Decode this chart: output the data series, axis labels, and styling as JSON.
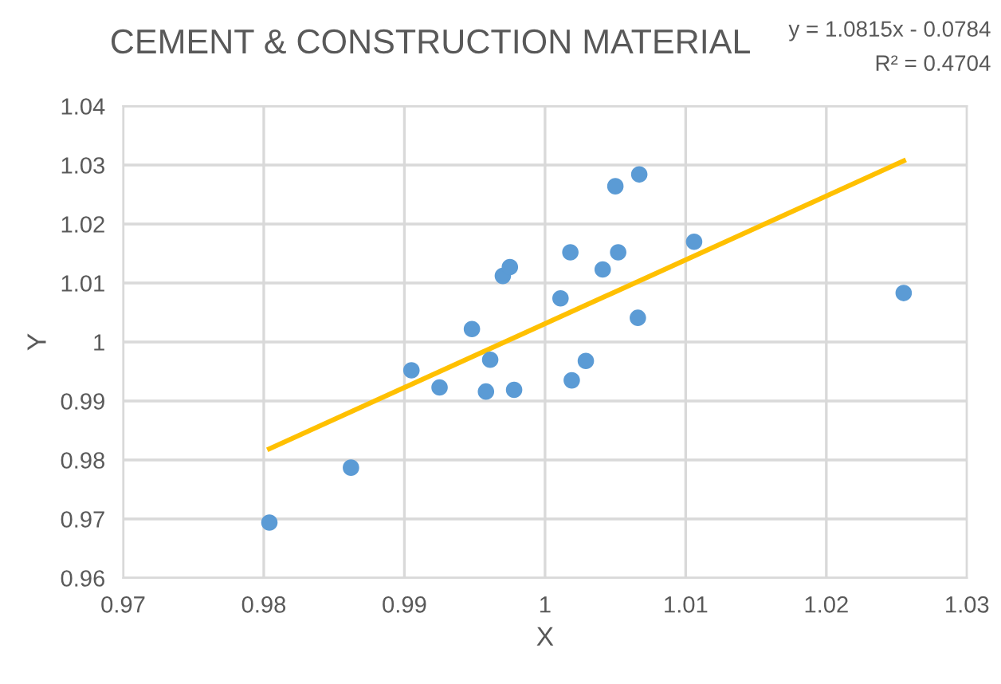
{
  "chart_data": {
    "type": "scatter",
    "title": "CEMENT & CONSTRUCTION MATERIAL",
    "xlabel": "X",
    "ylabel": "Y",
    "annotations": [
      "y = 1.0815x - 0.0784",
      "R² = 0.4704"
    ],
    "series": [
      {
        "color": "#5b9bd5",
        "marker": "circle",
        "x": [
          0.9804,
          0.9862,
          0.9905,
          0.9925,
          0.9948,
          0.9961,
          0.9958,
          0.9978,
          0.997,
          0.9975,
          1.0011,
          1.0018,
          1.0041,
          1.0052,
          1.005,
          1.0067,
          1.0106,
          1.0066,
          1.0029,
          1.0019,
          1.0255
        ],
        "values": [
          0.9694,
          0.9787,
          0.9952,
          0.9923,
          1.0022,
          0.997,
          0.9916,
          0.9919,
          1.0112,
          1.0127,
          1.0074,
          1.0152,
          1.0123,
          1.0152,
          1.0264,
          1.0284,
          1.017,
          1.0041,
          0.9968,
          0.9935,
          1.0083
        ]
      },
      {
        "type": "line",
        "color": "#ffc000",
        "x": [
          0.9804,
          1.0255
        ],
        "values": [
          0.9819,
          1.0307
        ]
      }
    ],
    "xlim": [
      0.97,
      1.03
    ],
    "xticks": [
      0.97,
      0.98,
      0.99,
      1,
      1.01,
      1.02,
      1.03
    ],
    "ylim": [
      0.96,
      1.04
    ],
    "yticks": [
      0.96,
      0.97,
      0.98,
      0.99,
      1,
      1.01,
      1.02,
      1.03,
      1.04
    ],
    "grid": true
  }
}
